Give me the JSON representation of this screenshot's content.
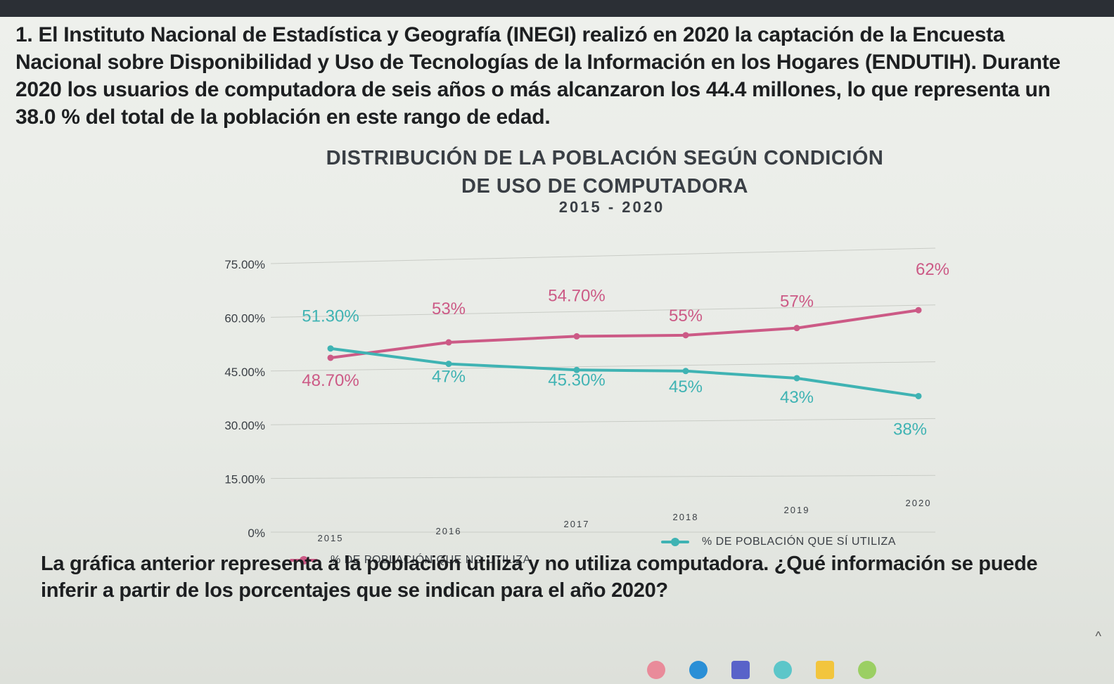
{
  "question": {
    "text": "1. El Instituto Nacional de Estadística y Geografía (INEGI) realizó en 2020 la captación de la Encuesta Nacional sobre Disponibilidad y Uso de Tecnologías de la Información en los Hogares (ENDUTIH). Durante 2020 los usuarios de computadora de seis años o más alcanzaron los 44.4 millones, lo que representa un 38.0 % del total de la población en este rango de edad."
  },
  "bottom_question": {
    "text": "La gráfica anterior representa a la población utiliza y no utiliza computadora. ¿Qué información se puede inferir a partir de los porcentajes que se indican para el año 2020?"
  },
  "colors": {
    "no_utiliza": "#cc5a86",
    "si_utiliza": "#3fb3b3",
    "axis_text": "#3a3f45",
    "grid": "#c9ccc6"
  },
  "taskbar": {
    "icons": [
      "search-icon",
      "browser-icon",
      "teams-icon",
      "paint-icon",
      "files-icon",
      "sound-icon"
    ]
  },
  "chart_data": {
    "type": "line",
    "title": "DISTRIBUCIÓN DE LA POBLACIÓN SEGÚN CONDICIÓN DE USO DE COMPUTADORA",
    "subtitle": "2015 - 2020",
    "categories": [
      "2015",
      "2016",
      "2017",
      "2018",
      "2019",
      "2020"
    ],
    "ylim": [
      0,
      75
    ],
    "y_ticks": [
      "0%",
      "15.00%",
      "30.00%",
      "45.00%",
      "60.00%",
      "75.00%"
    ],
    "y_tick_values": [
      0,
      15,
      30,
      45,
      60,
      75
    ],
    "grid": true,
    "legend_position": "bottom",
    "series": [
      {
        "name": "% DE POBLACIÓN QUE NO UTILIZA",
        "color": "#cc5a86",
        "values": [
          48.7,
          53,
          54.7,
          55,
          57,
          62
        ],
        "labels": [
          "48.70%",
          "53%",
          "54.70%",
          "55%",
          "57%",
          "62%"
        ]
      },
      {
        "name": "% DE POBLACIÓN QUE SÍ UTILIZA",
        "color": "#3fb3b3",
        "values": [
          51.3,
          47,
          45.3,
          45,
          43,
          38
        ],
        "labels": [
          "51.30%",
          "47%",
          "45.30%",
          "45%",
          "43%",
          "38%"
        ]
      }
    ]
  }
}
